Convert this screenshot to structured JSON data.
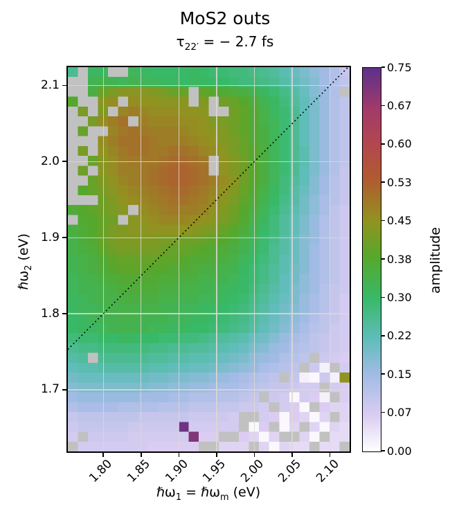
{
  "figure": {
    "title": "MoS2 outs",
    "subtitle": {
      "pre": "τ",
      "sub": "22′",
      "post": " =  − 2.7 fs"
    }
  },
  "axes": {
    "xlabel": {
      "p1": "ℏω",
      "s1": "1",
      "p2": " = ℏω",
      "s2": "m",
      "p3": " (eV)"
    },
    "ylabel": {
      "p1": "ℏω",
      "s1": "2",
      "p2": " (eV)"
    }
  },
  "colorbar": {
    "label": "amplitude",
    "tick_labels_top_to_bottom": [
      "0.75",
      "0.67",
      "0.60",
      "0.53",
      "0.45",
      "0.38",
      "0.30",
      "0.22",
      "0.15",
      "0.07",
      "0.00"
    ],
    "vmin": 0.0,
    "vmax": 0.75,
    "colormap_stops": [
      [
        0.0,
        "#ffffff"
      ],
      [
        0.07,
        "#dbcdf1"
      ],
      [
        0.15,
        "#a2bbe5"
      ],
      [
        0.22,
        "#60bdba"
      ],
      [
        0.3,
        "#38b968"
      ],
      [
        0.38,
        "#56a82c"
      ],
      [
        0.45,
        "#919320"
      ],
      [
        0.53,
        "#b05c30"
      ],
      [
        0.6,
        "#b2474e"
      ],
      [
        0.67,
        "#a23a6b"
      ],
      [
        0.75,
        "#5c3189"
      ]
    ]
  },
  "chart_data": {
    "type": "heatmap",
    "title": "MoS2 outs",
    "subtitle": "τ22′ =  − 2.7 fs",
    "xlabel": "ℏω1 = ℏωm (eV)",
    "ylabel": "ℏω2 (eV)",
    "colorbar_label": "amplitude",
    "x_range": [
      1.753,
      2.126
    ],
    "y_range": [
      1.619,
      2.124
    ],
    "x_ticks": [
      1.8,
      1.85,
      1.9,
      1.95,
      2.0,
      2.05,
      2.1
    ],
    "x_tick_labels": [
      "1.80",
      "1.85",
      "1.90",
      "1.95",
      "2.00",
      "2.05",
      "2.10"
    ],
    "y_ticks": [
      2.1,
      2.0,
      1.9,
      1.8,
      1.7
    ],
    "y_tick_labels": [
      "2.1",
      "2.0",
      "1.9",
      "1.8",
      "1.7"
    ],
    "colorbar_ticks": [
      0.0,
      0.07,
      0.15,
      0.22,
      0.3,
      0.38,
      0.45,
      0.53,
      0.6,
      0.67,
      0.75
    ],
    "grid": true,
    "diagonal_line": {
      "equation": "y = x",
      "style": "dotted",
      "color": "#000000"
    },
    "nan_color": "#c1c1c1",
    "n_cols": 28,
    "n_rows": 39,
    "row_order": "top_to_bottom",
    "values": [
      [
        0.26,
        null,
        0.31,
        0.31,
        null,
        null,
        0.32,
        0.31,
        0.3,
        0.3,
        0.3,
        0.3,
        0.31,
        0.3,
        0.29,
        0.29,
        0.28,
        0.28,
        0.27,
        0.26,
        0.25,
        0.23,
        0.21,
        0.19,
        0.17,
        0.15,
        0.13,
        0.1
      ],
      [
        null,
        null,
        0.33,
        0.34,
        0.33,
        0.32,
        0.33,
        0.32,
        0.32,
        0.31,
        0.31,
        0.3,
        0.31,
        0.31,
        0.3,
        0.3,
        0.29,
        0.28,
        0.28,
        0.27,
        0.26,
        0.24,
        0.22,
        0.2,
        0.18,
        0.15,
        0.13,
        0.11
      ],
      [
        null,
        null,
        0.35,
        0.4,
        0.42,
        0.44,
        0.44,
        0.44,
        0.43,
        0.42,
        0.4,
        0.4,
        null,
        0.39,
        0.38,
        0.37,
        0.36,
        0.35,
        0.33,
        0.31,
        0.29,
        0.27,
        0.24,
        0.21,
        0.18,
        0.16,
        0.13,
        null
      ],
      [
        0.38,
        null,
        null,
        0.44,
        0.46,
        null,
        0.46,
        0.45,
        0.45,
        0.44,
        0.44,
        0.44,
        null,
        0.43,
        null,
        0.41,
        0.4,
        0.38,
        0.36,
        0.33,
        0.31,
        0.28,
        0.25,
        0.22,
        0.19,
        0.16,
        0.13,
        0.11
      ],
      [
        null,
        0.42,
        null,
        0.43,
        null,
        0.47,
        0.48,
        0.47,
        0.46,
        0.46,
        0.46,
        0.45,
        0.45,
        0.44,
        null,
        null,
        0.41,
        0.39,
        0.37,
        0.34,
        0.31,
        0.29,
        0.26,
        0.22,
        0.19,
        0.16,
        0.13,
        0.11
      ],
      [
        null,
        null,
        0.42,
        0.46,
        0.48,
        0.5,
        null,
        0.48,
        0.47,
        0.47,
        0.47,
        0.46,
        0.46,
        0.45,
        0.43,
        0.42,
        0.41,
        0.39,
        0.37,
        0.34,
        0.32,
        0.29,
        0.26,
        0.22,
        0.19,
        0.16,
        0.13,
        0.11
      ],
      [
        null,
        0.4,
        null,
        null,
        0.47,
        0.49,
        0.5,
        0.49,
        0.48,
        0.48,
        0.48,
        0.47,
        0.46,
        0.45,
        0.44,
        0.43,
        0.41,
        0.39,
        0.37,
        0.35,
        0.32,
        0.29,
        0.26,
        0.22,
        0.19,
        0.16,
        0.13,
        0.11
      ],
      [
        null,
        null,
        null,
        0.46,
        0.48,
        0.5,
        0.5,
        0.5,
        0.49,
        0.48,
        0.48,
        0.48,
        0.47,
        0.46,
        0.45,
        0.43,
        0.42,
        0.4,
        0.37,
        0.35,
        0.32,
        0.29,
        0.26,
        0.22,
        0.19,
        0.16,
        0.13,
        0.11
      ],
      [
        null,
        0.42,
        null,
        0.45,
        0.47,
        0.49,
        0.5,
        0.5,
        0.49,
        0.49,
        0.5,
        0.5,
        0.49,
        0.47,
        0.46,
        0.44,
        0.42,
        0.4,
        0.38,
        0.35,
        0.32,
        0.29,
        0.26,
        0.23,
        0.19,
        0.16,
        0.13,
        0.11
      ],
      [
        null,
        null,
        0.4,
        0.44,
        0.46,
        0.48,
        0.49,
        0.49,
        0.49,
        0.5,
        0.51,
        0.51,
        0.5,
        0.49,
        null,
        0.45,
        0.43,
        0.41,
        0.38,
        0.35,
        0.32,
        0.29,
        0.26,
        0.23,
        0.19,
        0.16,
        0.13,
        0.11
      ],
      [
        null,
        0.41,
        null,
        0.44,
        0.46,
        0.48,
        0.48,
        0.49,
        0.5,
        0.51,
        0.52,
        0.52,
        0.51,
        0.5,
        null,
        0.45,
        0.43,
        0.41,
        0.38,
        0.35,
        0.32,
        0.29,
        0.26,
        0.22,
        0.19,
        0.16,
        0.13,
        0.1
      ],
      [
        null,
        null,
        0.4,
        0.43,
        0.45,
        0.47,
        0.48,
        0.49,
        0.5,
        0.51,
        0.52,
        0.52,
        0.51,
        0.5,
        0.48,
        0.46,
        0.44,
        0.41,
        0.38,
        0.35,
        0.32,
        0.28,
        0.25,
        0.22,
        0.18,
        0.15,
        0.12,
        0.1
      ],
      [
        null,
        0.38,
        0.4,
        0.42,
        0.44,
        0.46,
        0.47,
        0.48,
        0.49,
        0.5,
        0.51,
        0.51,
        0.5,
        0.49,
        0.47,
        0.45,
        0.43,
        0.4,
        0.37,
        0.34,
        0.31,
        0.28,
        0.24,
        0.21,
        0.18,
        0.15,
        0.12,
        0.1
      ],
      [
        null,
        null,
        null,
        0.41,
        0.43,
        0.45,
        0.46,
        0.47,
        0.48,
        0.49,
        0.5,
        0.5,
        0.49,
        0.48,
        0.46,
        0.44,
        0.42,
        0.39,
        0.36,
        0.33,
        0.3,
        0.27,
        0.24,
        0.2,
        0.17,
        0.14,
        0.12,
        0.1
      ],
      [
        0.36,
        0.38,
        0.39,
        0.41,
        0.42,
        0.44,
        null,
        0.46,
        0.47,
        0.48,
        0.49,
        0.48,
        0.48,
        0.47,
        0.45,
        0.43,
        0.41,
        0.38,
        0.35,
        0.32,
        0.29,
        0.26,
        0.23,
        0.2,
        0.17,
        0.14,
        0.11,
        0.09
      ],
      [
        null,
        0.37,
        0.38,
        0.4,
        0.41,
        null,
        0.44,
        0.45,
        0.46,
        0.47,
        0.47,
        0.47,
        0.46,
        0.45,
        0.44,
        0.42,
        0.4,
        0.37,
        0.34,
        0.31,
        0.28,
        0.25,
        0.22,
        0.19,
        0.16,
        0.13,
        0.11,
        0.09
      ],
      [
        0.35,
        0.36,
        0.38,
        0.4,
        0.42,
        0.43,
        0.44,
        0.44,
        0.45,
        0.45,
        0.45,
        0.45,
        0.44,
        0.43,
        0.42,
        0.4,
        0.38,
        0.36,
        0.33,
        0.3,
        0.28,
        0.25,
        0.22,
        0.19,
        0.16,
        0.13,
        0.11,
        0.09
      ],
      [
        0.34,
        0.36,
        0.37,
        0.4,
        0.42,
        0.43,
        0.43,
        0.43,
        0.43,
        0.42,
        0.42,
        0.41,
        0.41,
        0.4,
        0.39,
        0.38,
        0.36,
        0.34,
        0.32,
        0.29,
        0.27,
        0.24,
        0.21,
        0.18,
        0.16,
        0.13,
        0.11,
        0.09
      ],
      [
        0.34,
        0.35,
        0.36,
        0.39,
        0.41,
        0.42,
        0.42,
        0.42,
        0.42,
        0.41,
        0.4,
        0.4,
        0.39,
        0.38,
        0.37,
        0.36,
        0.35,
        0.33,
        0.31,
        0.29,
        0.26,
        0.24,
        0.21,
        0.18,
        0.15,
        0.13,
        0.11,
        0.09
      ],
      [
        0.33,
        0.34,
        0.35,
        0.37,
        0.39,
        0.4,
        0.4,
        0.4,
        0.4,
        0.39,
        0.39,
        0.38,
        0.37,
        0.37,
        0.36,
        0.35,
        0.34,
        0.32,
        0.3,
        0.28,
        0.26,
        0.23,
        0.21,
        0.18,
        0.15,
        0.13,
        0.11,
        0.09
      ],
      [
        0.33,
        0.34,
        0.35,
        0.36,
        0.38,
        0.39,
        0.39,
        0.39,
        0.38,
        0.38,
        0.37,
        0.37,
        0.36,
        0.35,
        0.35,
        0.34,
        0.33,
        0.31,
        0.29,
        0.27,
        0.25,
        0.23,
        0.2,
        0.18,
        0.15,
        0.13,
        0.11,
        0.09
      ],
      [
        0.32,
        0.33,
        0.34,
        0.35,
        0.36,
        0.37,
        0.37,
        0.37,
        0.37,
        0.36,
        0.36,
        0.35,
        0.35,
        0.34,
        0.34,
        0.33,
        0.32,
        0.3,
        0.29,
        0.27,
        0.25,
        0.22,
        0.2,
        0.17,
        0.15,
        0.13,
        0.11,
        0.09
      ],
      [
        0.32,
        0.33,
        0.33,
        0.34,
        0.35,
        0.36,
        0.36,
        0.36,
        0.36,
        0.35,
        0.35,
        0.34,
        0.34,
        0.33,
        0.33,
        0.32,
        0.31,
        0.3,
        0.28,
        0.26,
        0.24,
        0.22,
        0.19,
        0.17,
        0.15,
        0.12,
        0.1,
        0.09
      ],
      [
        0.31,
        0.32,
        0.33,
        0.34,
        0.34,
        0.35,
        0.35,
        0.35,
        0.35,
        0.34,
        0.34,
        0.33,
        0.33,
        0.32,
        0.32,
        0.31,
        0.3,
        0.29,
        0.27,
        0.25,
        0.23,
        0.21,
        0.19,
        0.16,
        0.14,
        0.12,
        0.1,
        0.08
      ],
      [
        0.31,
        0.32,
        0.32,
        0.33,
        0.34,
        0.34,
        0.34,
        0.34,
        0.34,
        0.33,
        0.33,
        0.32,
        0.32,
        0.31,
        0.31,
        0.3,
        0.29,
        0.28,
        0.26,
        0.24,
        0.22,
        0.2,
        0.18,
        0.16,
        0.14,
        0.12,
        0.1,
        0.08
      ],
      [
        0.3,
        0.31,
        0.32,
        0.33,
        0.33,
        0.34,
        0.34,
        0.33,
        0.33,
        0.33,
        0.32,
        0.32,
        0.31,
        0.31,
        0.3,
        0.29,
        0.28,
        0.27,
        0.25,
        0.23,
        0.21,
        0.19,
        0.17,
        0.15,
        0.13,
        0.11,
        0.1,
        0.08
      ],
      [
        0.3,
        0.31,
        0.31,
        0.32,
        0.33,
        0.33,
        0.33,
        0.33,
        0.32,
        0.32,
        0.31,
        0.31,
        0.3,
        0.3,
        0.29,
        0.28,
        0.27,
        0.26,
        0.24,
        0.22,
        0.2,
        0.18,
        0.16,
        0.14,
        0.12,
        0.11,
        0.09,
        0.08
      ],
      [
        0.28,
        0.29,
        0.29,
        0.3,
        0.3,
        0.31,
        0.31,
        0.3,
        0.3,
        0.29,
        0.29,
        0.28,
        0.28,
        0.27,
        0.26,
        0.25,
        0.24,
        0.23,
        0.21,
        0.2,
        0.18,
        0.16,
        0.14,
        0.13,
        0.11,
        0.1,
        0.09,
        0.08
      ],
      [
        0.26,
        0.27,
        0.27,
        0.28,
        0.28,
        0.28,
        0.28,
        0.28,
        0.27,
        0.27,
        0.26,
        0.26,
        0.25,
        0.25,
        0.24,
        0.23,
        0.22,
        0.21,
        0.19,
        0.18,
        0.16,
        0.15,
        0.13,
        0.12,
        0.11,
        0.1,
        0.09,
        0.08
      ],
      [
        0.24,
        0.25,
        null,
        0.26,
        0.26,
        0.26,
        0.26,
        0.26,
        0.25,
        0.25,
        0.24,
        0.24,
        0.23,
        0.23,
        0.22,
        0.21,
        0.2,
        0.19,
        0.17,
        0.16,
        0.15,
        0.13,
        0.12,
        0.11,
        null,
        0.09,
        0.08,
        0.07
      ],
      [
        0.22,
        0.23,
        0.23,
        0.24,
        0.24,
        0.24,
        0.24,
        0.24,
        0.23,
        0.23,
        0.22,
        0.22,
        0.21,
        0.21,
        0.2,
        0.19,
        0.18,
        0.17,
        0.16,
        0.14,
        0.13,
        0.12,
        0.11,
        null,
        0.09,
        0.02,
        null,
        0.08
      ],
      [
        0.2,
        0.21,
        0.21,
        0.21,
        0.21,
        0.21,
        0.21,
        0.21,
        0.2,
        0.2,
        0.19,
        0.19,
        0.18,
        0.18,
        0.17,
        0.16,
        0.15,
        0.14,
        0.13,
        0.12,
        0.11,
        null,
        0.1,
        0.02,
        0.01,
        0.09,
        0.02,
        0.45
      ],
      [
        0.18,
        0.19,
        0.19,
        0.19,
        0.19,
        0.19,
        0.19,
        0.19,
        0.18,
        0.18,
        0.17,
        0.17,
        0.16,
        0.16,
        0.15,
        0.14,
        0.14,
        0.13,
        0.12,
        0.11,
        0.1,
        0.1,
        0.09,
        0.08,
        0.08,
        null,
        0.08,
        0.07
      ],
      [
        0.15,
        0.16,
        0.16,
        0.16,
        0.16,
        0.16,
        0.16,
        0.15,
        0.15,
        0.15,
        0.14,
        0.14,
        0.13,
        0.13,
        0.13,
        0.12,
        0.12,
        0.11,
        0.1,
        null,
        0.09,
        0.08,
        0.01,
        0.08,
        0.07,
        0.02,
        null,
        0.07
      ],
      [
        0.13,
        0.14,
        0.14,
        0.14,
        0.14,
        0.13,
        0.13,
        0.13,
        0.13,
        0.12,
        0.12,
        0.12,
        0.11,
        0.11,
        0.11,
        0.1,
        0.1,
        0.09,
        0.09,
        0.08,
        null,
        0.08,
        0.07,
        0.01,
        null,
        0.07,
        0.06,
        0.06
      ],
      [
        0.1,
        0.11,
        0.11,
        0.11,
        0.11,
        0.11,
        0.11,
        0.1,
        0.1,
        0.1,
        0.1,
        0.1,
        0.09,
        0.09,
        0.09,
        0.09,
        0.08,
        null,
        null,
        0.08,
        0.07,
        0.01,
        0.07,
        0.06,
        0.01,
        0.06,
        null,
        0.06
      ],
      [
        0.09,
        0.1,
        0.1,
        0.1,
        0.1,
        0.1,
        0.09,
        0.09,
        0.09,
        0.09,
        0.09,
        0.73,
        0.08,
        0.08,
        0.08,
        0.08,
        0.08,
        null,
        0.01,
        0.07,
        null,
        0.01,
        0.06,
        null,
        0.06,
        0.01,
        0.06,
        0.05
      ],
      [
        0.08,
        null,
        0.09,
        0.09,
        0.09,
        0.09,
        0.08,
        0.08,
        0.08,
        0.08,
        0.08,
        0.08,
        0.71,
        0.07,
        0.07,
        null,
        null,
        0.07,
        0.06,
        0.01,
        0.06,
        null,
        null,
        0.06,
        0.01,
        null,
        0.05,
        0.05
      ],
      [
        null,
        0.08,
        0.08,
        0.08,
        0.08,
        0.08,
        0.08,
        0.08,
        0.07,
        0.07,
        0.07,
        0.07,
        0.07,
        null,
        null,
        0.06,
        0.06,
        0.06,
        null,
        0.06,
        0.01,
        0.06,
        0.05,
        0.05,
        null,
        0.05,
        0.05,
        null
      ]
    ]
  }
}
